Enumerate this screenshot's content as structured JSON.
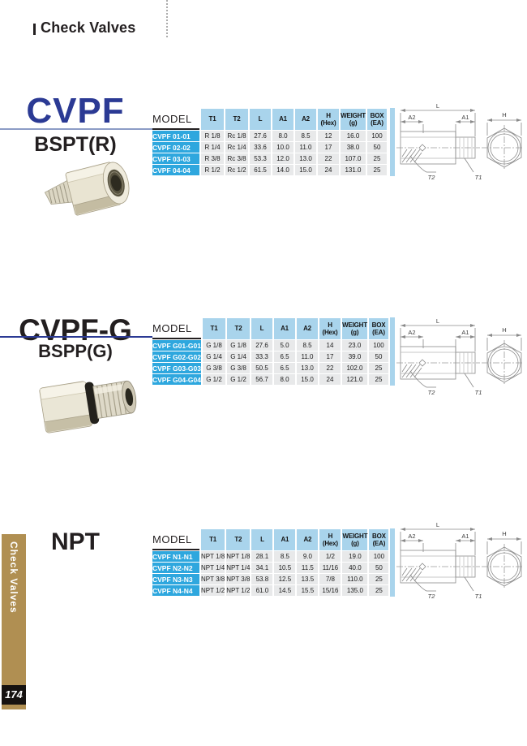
{
  "header": {
    "title": "Check Valves"
  },
  "sidebar": {
    "label": "Check Valves",
    "page_number": "174"
  },
  "colors": {
    "model_cell_cyan": "#2EA7DE",
    "header_cell_blue": "#A9D4EC",
    "row_gray": "#E8E9EA",
    "series_title_blue": "#2B3A94",
    "tab_gold": "#B08F52",
    "rule_blue": "#2B3A94",
    "rule_slate": "#8C9CC6"
  },
  "sections": [
    {
      "id": "cvpf",
      "title": "CVPF",
      "title_color": "#2B3A94",
      "rule_color": "#8C9CC6",
      "subtitle": "BSPT(R)",
      "photo": "bspt",
      "table": {
        "model_header": "MODEL",
        "columns": [
          "T1",
          "T2",
          "L",
          "A1",
          "A2",
          "H\n(Hex)",
          "WEIGHT\n(g)",
          "BOX\n(EA)"
        ],
        "rows": [
          {
            "model": "CVPF 01-01",
            "values": [
              "R 1/8",
              "Rc 1/8",
              "27.6",
              "8.0",
              "8.5",
              "12",
              "16.0",
              "100"
            ]
          },
          {
            "model": "CVPF 02-02",
            "values": [
              "R 1/4",
              "Rc 1/4",
              "33.6",
              "10.0",
              "11.0",
              "17",
              "38.0",
              "50"
            ]
          },
          {
            "model": "CVPF 03-03",
            "values": [
              "R 3/8",
              "Rc 3/8",
              "53.3",
              "12.0",
              "13.0",
              "22",
              "107.0",
              "25"
            ]
          },
          {
            "model": "CVPF 04-04",
            "values": [
              "R 1/2",
              "Rc 1/2",
              "61.5",
              "14.0",
              "15.0",
              "24",
              "131.0",
              "25"
            ]
          }
        ]
      },
      "drawing_labels": {
        "l": "L",
        "a2": "A2",
        "a1": "A1",
        "h": "H",
        "t2": "T2",
        "t1": "T1"
      }
    },
    {
      "id": "cvpfg",
      "title": "CVPF-G",
      "title_color": "#231F20",
      "rule_color": "#2B3A94",
      "subtitle": "BSPP(G)",
      "photo": "bspp",
      "table": {
        "model_header": "MODEL",
        "columns": [
          "T1",
          "T2",
          "L",
          "A1",
          "A2",
          "H\n(Hex)",
          "WEIGHT\n(g)",
          "BOX\n(EA)"
        ],
        "rows": [
          {
            "model": "CVPF G01-G01",
            "values": [
              "G 1/8",
              "G 1/8",
              "27.6",
              "5.0",
              "8.5",
              "14",
              "23.0",
              "100"
            ]
          },
          {
            "model": "CVPF G02-G02",
            "values": [
              "G 1/4",
              "G 1/4",
              "33.3",
              "6.5",
              "11.0",
              "17",
              "39.0",
              "50"
            ]
          },
          {
            "model": "CVPF G03-G03",
            "values": [
              "G 3/8",
              "G 3/8",
              "50.5",
              "6.5",
              "13.0",
              "22",
              "102.0",
              "25"
            ]
          },
          {
            "model": "CVPF G04-G04",
            "values": [
              "G 1/2",
              "G 1/2",
              "56.7",
              "8.0",
              "15.0",
              "24",
              "121.0",
              "25"
            ]
          }
        ]
      },
      "drawing_labels": {
        "l": "L",
        "a2": "A2",
        "a1": "A1",
        "h": "H",
        "t2": "T2",
        "t1": "T1"
      }
    },
    {
      "id": "npt",
      "title": "NPT",
      "title_color": "#231F20",
      "rule_color": null,
      "subtitle": null,
      "photo": null,
      "table": {
        "model_header": "MODEL",
        "columns": [
          "T1",
          "T2",
          "L",
          "A1",
          "A2",
          "H\n(Hex)",
          "WEIGHT\n(g)",
          "BOX\n(EA)"
        ],
        "rows": [
          {
            "model": "CVPF N1-N1",
            "values": [
              "NPT 1/8",
              "NPT 1/8",
              "28.1",
              "8.5",
              "9.0",
              "1/2",
              "19.0",
              "100"
            ]
          },
          {
            "model": "CVPF N2-N2",
            "values": [
              "NPT 1/4",
              "NPT 1/4",
              "34.1",
              "10.5",
              "11.5",
              "11/16",
              "40.0",
              "50"
            ]
          },
          {
            "model": "CVPF N3-N3",
            "values": [
              "NPT 3/8",
              "NPT 3/8",
              "53.8",
              "12.5",
              "13.5",
              "7/8",
              "110.0",
              "25"
            ]
          },
          {
            "model": "CVPF N4-N4",
            "values": [
              "NPT 1/2",
              "NPT 1/2",
              "61.0",
              "14.5",
              "15.5",
              "15/16",
              "135.0",
              "25"
            ]
          }
        ]
      },
      "drawing_labels": {
        "l": "L",
        "a2": "A2",
        "a1": "A1",
        "h": "H",
        "t2": "T2",
        "t1": "T1"
      }
    }
  ]
}
